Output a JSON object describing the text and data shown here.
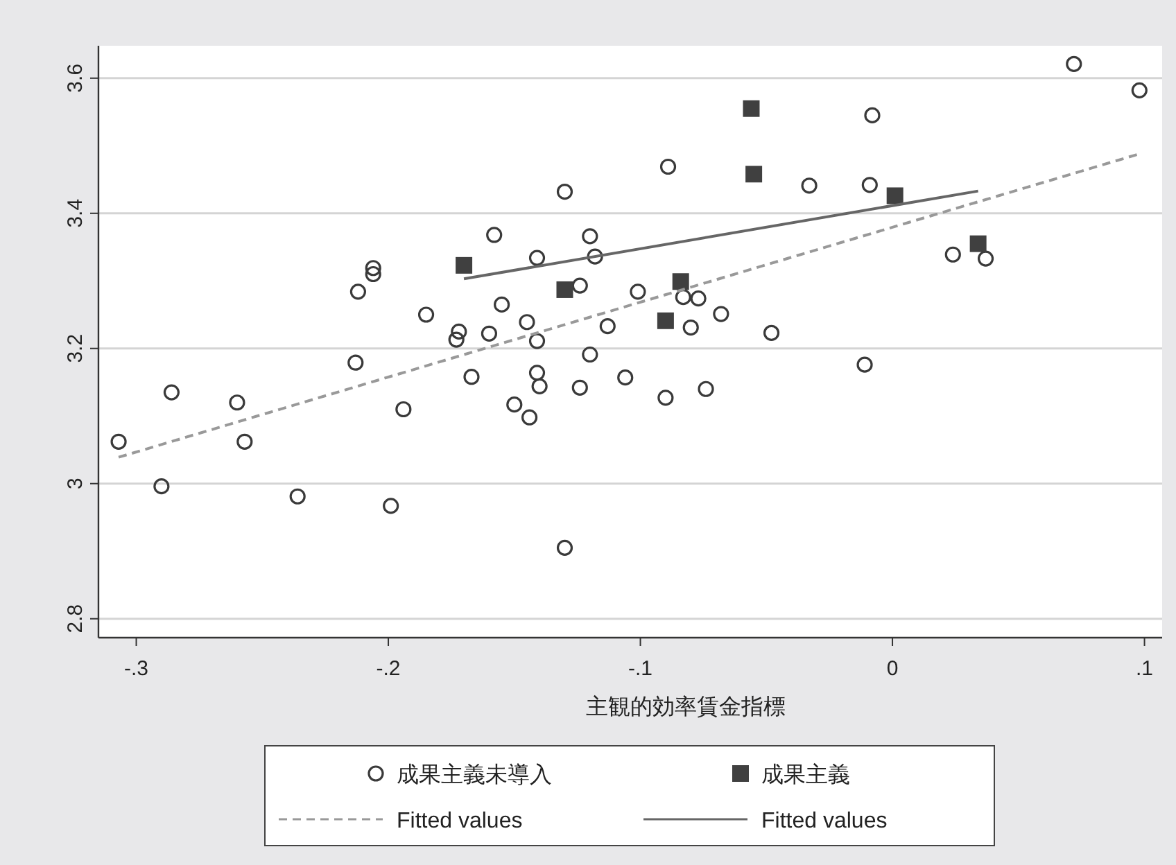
{
  "chart_data": {
    "type": "scatter",
    "xlabel": "主観的効率賃金指標",
    "xlim": [
      -0.315,
      0.107
    ],
    "ylim": [
      2.772,
      3.648
    ],
    "xticks": [
      {
        "value": -0.3,
        "label": "-.3"
      },
      {
        "value": -0.2,
        "label": "-.2"
      },
      {
        "value": -0.1,
        "label": "-.1"
      },
      {
        "value": 0,
        "label": "0"
      },
      {
        "value": 0.1,
        "label": ".1"
      }
    ],
    "yticks": [
      {
        "value": 2.8,
        "label": "2.8"
      },
      3,
      {
        "value": 3.2,
        "label": "3.2"
      },
      {
        "value": 3.4,
        "label": "3.4"
      },
      {
        "value": 3.6,
        "label": "3.6"
      }
    ],
    "grid": "y",
    "legend": "bottom",
    "series": [
      {
        "name": "成果主義未導入",
        "marker": "circle",
        "color": "#3a3a3a",
        "x": [
          -0.307,
          -0.29,
          -0.286,
          -0.26,
          -0.257,
          -0.236,
          -0.213,
          -0.212,
          -0.206,
          -0.206,
          -0.199,
          -0.194,
          -0.185,
          -0.173,
          -0.172,
          -0.167,
          -0.16,
          -0.158,
          -0.155,
          -0.15,
          -0.145,
          -0.144,
          -0.141,
          -0.141,
          -0.141,
          -0.14,
          -0.13,
          -0.13,
          -0.124,
          -0.124,
          -0.12,
          -0.12,
          -0.118,
          -0.113,
          -0.106,
          -0.101,
          -0.09,
          -0.089,
          -0.083,
          -0.08,
          -0.077,
          -0.074,
          -0.068,
          -0.048,
          -0.033,
          -0.011,
          -0.008,
          -0.009,
          0.024,
          0.037,
          0.072,
          0.098
        ],
        "values": [
          3.062,
          2.996,
          3.135,
          3.12,
          3.062,
          2.981,
          3.179,
          3.284,
          3.319,
          3.31,
          2.967,
          3.11,
          3.25,
          3.213,
          3.225,
          3.158,
          3.222,
          3.368,
          3.265,
          3.117,
          3.239,
          3.098,
          3.334,
          3.211,
          3.164,
          3.144,
          3.432,
          2.905,
          3.293,
          3.142,
          3.191,
          3.366,
          3.336,
          3.233,
          3.157,
          3.284,
          3.127,
          3.469,
          3.276,
          3.231,
          3.274,
          3.14,
          3.251,
          3.223,
          3.441,
          3.176,
          3.545,
          3.442,
          3.339,
          3.333,
          3.621,
          3.582
        ]
      },
      {
        "name": "成果主義",
        "marker": "square",
        "color": "#404040",
        "x": [
          -0.17,
          -0.13,
          -0.09,
          -0.084,
          -0.056,
          -0.055,
          0.001,
          0.034
        ],
        "values": [
          3.323,
          3.287,
          3.241,
          3.299,
          3.555,
          3.458,
          3.426,
          3.355
        ]
      },
      {
        "name": "Fitted values",
        "type": "line",
        "line_style": "dashed",
        "color": "#999999",
        "x": [
          -0.307,
          0.098
        ],
        "values": [
          3.039,
          3.488
        ]
      },
      {
        "name": "Fitted values",
        "type": "line",
        "line_style": "solid",
        "color": "#666666",
        "x": [
          -0.17,
          0.034
        ],
        "values": [
          3.303,
          3.433
        ]
      }
    ]
  }
}
